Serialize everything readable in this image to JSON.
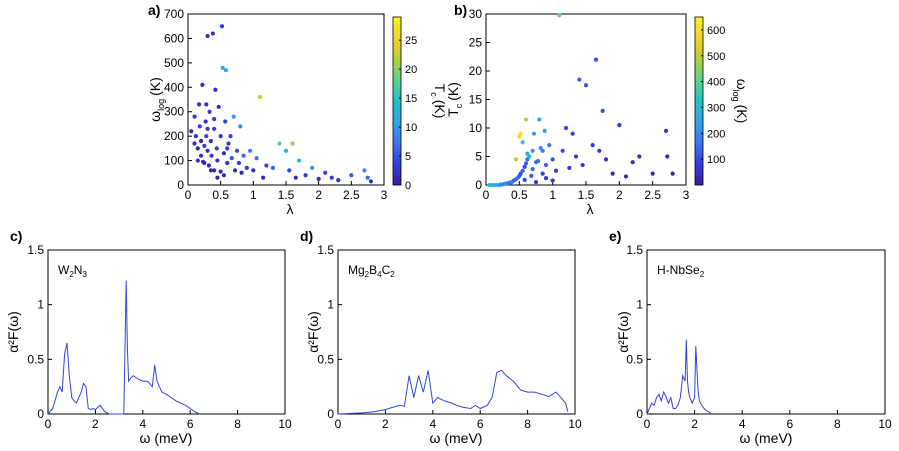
{
  "colormap": [
    "#3b1ba0",
    "#2f3fe0",
    "#3f74f2",
    "#2ea5e6",
    "#1ec4c4",
    "#5cd28a",
    "#b6cf3a",
    "#f2d22a",
    "#fbf514"
  ],
  "line_color": "#3346d6",
  "chart_data": [
    {
      "id": "a",
      "type": "scatter",
      "panel_label": "a)",
      "xlabel": "λ",
      "ylabel_main": "ω",
      "ylabel_sub": "log",
      "ylabel_unit": "(K)",
      "xlim": [
        0,
        3
      ],
      "ylim": [
        0,
        700
      ],
      "xticks": [
        "0",
        "0.5",
        "1",
        "1.5",
        "2",
        "2.5",
        "3"
      ],
      "yticks": [
        "0",
        "100",
        "200",
        "300",
        "400",
        "500",
        "600",
        "700"
      ],
      "colorbar": {
        "label": "T",
        "label_sub": "c",
        "label_unit": "(K)",
        "range": [
          0,
          29
        ],
        "ticks": [
          "0",
          "5",
          "10",
          "15",
          "20",
          "25"
        ]
      },
      "points": [
        [
          0.05,
          220,
          2
        ],
        [
          0.1,
          280,
          3
        ],
        [
          0.12,
          200,
          2
        ],
        [
          0.15,
          150,
          1
        ],
        [
          0.17,
          330,
          2
        ],
        [
          0.18,
          240,
          3
        ],
        [
          0.2,
          180,
          1
        ],
        [
          0.2,
          120,
          2
        ],
        [
          0.22,
          410,
          2
        ],
        [
          0.23,
          95,
          1
        ],
        [
          0.25,
          160,
          3
        ],
        [
          0.27,
          260,
          2
        ],
        [
          0.28,
          200,
          4
        ],
        [
          0.3,
          610,
          2
        ],
        [
          0.3,
          140,
          2
        ],
        [
          0.32,
          80,
          1
        ],
        [
          0.33,
          300,
          3
        ],
        [
          0.35,
          180,
          2
        ],
        [
          0.36,
          120,
          3
        ],
        [
          0.38,
          620,
          2
        ],
        [
          0.4,
          230,
          3
        ],
        [
          0.4,
          60,
          1
        ],
        [
          0.42,
          390,
          2
        ],
        [
          0.44,
          150,
          3
        ],
        [
          0.45,
          100,
          2
        ],
        [
          0.47,
          320,
          2
        ],
        [
          0.5,
          200,
          3
        ],
        [
          0.5,
          55,
          1
        ],
        [
          0.52,
          650,
          3
        ],
        [
          0.53,
          480,
          12
        ],
        [
          0.55,
          130,
          2
        ],
        [
          0.57,
          260,
          4
        ],
        [
          0.58,
          470,
          11
        ],
        [
          0.6,
          90,
          2
        ],
        [
          0.62,
          170,
          3
        ],
        [
          0.65,
          200,
          4
        ],
        [
          0.67,
          110,
          5
        ],
        [
          0.7,
          280,
          10
        ],
        [
          0.72,
          60,
          2
        ],
        [
          0.75,
          140,
          4
        ],
        [
          0.78,
          90,
          3
        ],
        [
          0.8,
          240,
          9
        ],
        [
          0.82,
          50,
          1
        ],
        [
          0.85,
          120,
          6
        ],
        [
          0.9,
          70,
          3
        ],
        [
          0.95,
          140,
          8
        ],
        [
          1.0,
          60,
          2
        ],
        [
          1.05,
          110,
          7
        ],
        [
          1.1,
          360,
          22
        ],
        [
          1.15,
          30,
          1
        ],
        [
          1.2,
          80,
          4
        ],
        [
          1.3,
          70,
          6
        ],
        [
          1.4,
          170,
          18
        ],
        [
          1.5,
          140,
          12
        ],
        [
          1.55,
          60,
          4
        ],
        [
          1.6,
          170,
          20
        ],
        [
          1.65,
          30,
          2
        ],
        [
          1.7,
          100,
          14
        ],
        [
          1.8,
          40,
          3
        ],
        [
          1.9,
          70,
          10
        ],
        [
          2.0,
          25,
          2
        ],
        [
          2.1,
          50,
          4
        ],
        [
          2.2,
          30,
          3
        ],
        [
          2.3,
          20,
          2
        ],
        [
          2.5,
          40,
          5
        ],
        [
          2.7,
          60,
          9
        ],
        [
          2.75,
          30,
          6
        ],
        [
          2.8,
          15,
          2
        ],
        [
          0.25,
          90,
          1
        ],
        [
          0.35,
          60,
          1
        ],
        [
          0.45,
          30,
          1
        ],
        [
          0.55,
          40,
          2
        ],
        [
          0.6,
          150,
          3
        ],
        [
          0.15,
          100,
          2
        ],
        [
          0.28,
          330,
          2
        ],
        [
          0.4,
          270,
          3
        ],
        [
          0.1,
          170,
          2
        ],
        [
          0.3,
          230,
          2
        ]
      ]
    },
    {
      "id": "b",
      "type": "scatter",
      "panel_label": "b)",
      "xlabel": "λ",
      "ylabel_main": "T",
      "ylabel_sub": "c",
      "ylabel_unit": "(K)",
      "xlim": [
        0,
        3
      ],
      "ylim": [
        0,
        30
      ],
      "xticks": [
        "0",
        "0.5",
        "1",
        "1.5",
        "2",
        "2.5",
        "3"
      ],
      "yticks": [
        "0",
        "5",
        "10",
        "15",
        "20",
        "25",
        "30"
      ],
      "colorbar": {
        "label": "ω",
        "label_sub": "log",
        "label_unit": "(K)",
        "range": [
          0,
          650
        ],
        "ticks": [
          "100",
          "200",
          "300",
          "400",
          "500",
          "600"
        ]
      },
      "points": [
        [
          0.05,
          0,
          300
        ],
        [
          0.1,
          0,
          280
        ],
        [
          0.15,
          0,
          250
        ],
        [
          0.2,
          0,
          220
        ],
        [
          0.22,
          0.1,
          200
        ],
        [
          0.25,
          0.1,
          190
        ],
        [
          0.28,
          0.2,
          180
        ],
        [
          0.3,
          0.2,
          260
        ],
        [
          0.32,
          0.3,
          170
        ],
        [
          0.35,
          0.4,
          160
        ],
        [
          0.38,
          0.5,
          150
        ],
        [
          0.4,
          0.6,
          200
        ],
        [
          0.42,
          0.8,
          140
        ],
        [
          0.45,
          1.0,
          130
        ],
        [
          0.48,
          1.3,
          160
        ],
        [
          0.5,
          1.6,
          120
        ],
        [
          0.52,
          2.0,
          110
        ],
        [
          0.55,
          2.5,
          130
        ],
        [
          0.58,
          3.2,
          100
        ],
        [
          0.6,
          3.8,
          120
        ],
        [
          0.62,
          4.5,
          150
        ],
        [
          0.45,
          4.5,
          500
        ],
        [
          0.5,
          8.5,
          560
        ],
        [
          0.52,
          9.0,
          600
        ],
        [
          0.55,
          7.5,
          350
        ],
        [
          0.6,
          11.5,
          480
        ],
        [
          0.62,
          5.5,
          260
        ],
        [
          0.65,
          5.0,
          300
        ],
        [
          0.7,
          6.0,
          200
        ],
        [
          0.72,
          9.0,
          250
        ],
        [
          0.75,
          4.0,
          180
        ],
        [
          0.8,
          11.5,
          260
        ],
        [
          0.82,
          6.5,
          200
        ],
        [
          0.85,
          2.0,
          90
        ],
        [
          0.88,
          9.5,
          220
        ],
        [
          0.9,
          3.5,
          120
        ],
        [
          0.95,
          7.0,
          160
        ],
        [
          1.0,
          4.5,
          110
        ],
        [
          1.05,
          2.5,
          80
        ],
        [
          1.1,
          29.8,
          420
        ],
        [
          1.15,
          6.0,
          90
        ],
        [
          1.2,
          10.0,
          90
        ],
        [
          1.25,
          3.0,
          70
        ],
        [
          1.3,
          9.0,
          80
        ],
        [
          1.35,
          5.0,
          70
        ],
        [
          1.4,
          18.5,
          120
        ],
        [
          1.45,
          3.5,
          60
        ],
        [
          1.5,
          17.5,
          120
        ],
        [
          1.6,
          7.0,
          70
        ],
        [
          1.65,
          22.0,
          110
        ],
        [
          1.7,
          6.0,
          60
        ],
        [
          1.75,
          13.0,
          100
        ],
        [
          1.8,
          4.5,
          50
        ],
        [
          1.9,
          2.0,
          40
        ],
        [
          2.0,
          10.5,
          70
        ],
        [
          2.1,
          1.5,
          30
        ],
        [
          2.2,
          4.0,
          40
        ],
        [
          2.3,
          5.0,
          45
        ],
        [
          2.5,
          2.0,
          30
        ],
        [
          2.7,
          9.5,
          60
        ],
        [
          2.72,
          5.0,
          40
        ],
        [
          2.8,
          2.0,
          20
        ],
        [
          0.7,
          2.8,
          150
        ],
        [
          0.78,
          4.2,
          140
        ],
        [
          0.85,
          6.0,
          180
        ],
        [
          0.9,
          1.2,
          80
        ],
        [
          1.0,
          0.8,
          60
        ],
        [
          0.58,
          0.9,
          90
        ],
        [
          0.68,
          1.6,
          120
        ],
        [
          0.75,
          0.5,
          70
        ]
      ]
    },
    {
      "id": "c",
      "type": "line",
      "panel_label": "c)",
      "inset_label": "W",
      "inset_parts": [
        {
          "t": "W",
          "sub": false
        },
        {
          "t": "2",
          "sub": true
        },
        {
          "t": "N",
          "sub": false
        },
        {
          "t": "3",
          "sub": true
        }
      ],
      "xlabel": "ω (meV)",
      "ylabel": "α²F(ω)",
      "xlim": [
        0,
        10
      ],
      "ylim": [
        0,
        1.5
      ],
      "xticks": [
        "0",
        "2",
        "4",
        "6",
        "8",
        "10"
      ],
      "yticks": [
        "0",
        "0.5",
        "1",
        "1.5"
      ],
      "x": [
        0,
        0.2,
        0.4,
        0.5,
        0.6,
        0.7,
        0.8,
        0.9,
        1.0,
        1.1,
        1.2,
        1.3,
        1.4,
        1.5,
        1.6,
        1.7,
        1.8,
        1.9,
        2.0,
        2.2,
        2.4,
        2.6,
        2.8,
        3.0,
        3.1,
        3.2,
        3.25,
        3.3,
        3.35,
        3.4,
        3.5,
        3.6,
        3.8,
        4.0,
        4.2,
        4.4,
        4.5,
        4.6,
        4.7,
        4.8,
        5.0,
        5.2,
        5.4,
        5.6,
        5.8,
        6.0,
        6.2,
        6.4
      ],
      "y": [
        0,
        0.05,
        0.2,
        0.25,
        0.2,
        0.55,
        0.65,
        0.35,
        0.15,
        0.12,
        0.1,
        0.15,
        0.2,
        0.28,
        0.25,
        0.05,
        0.04,
        0.05,
        0.04,
        0.08,
        0.02,
        0,
        0,
        0,
        0,
        0,
        0.6,
        1.22,
        0.6,
        0.3,
        0.33,
        0.35,
        0.32,
        0.3,
        0.3,
        0.25,
        0.45,
        0.3,
        0.25,
        0.2,
        0.18,
        0.15,
        0.12,
        0.1,
        0.08,
        0.05,
        0.02,
        0
      ]
    },
    {
      "id": "d",
      "type": "line",
      "panel_label": "d)",
      "inset_label": "Mg",
      "inset_parts": [
        {
          "t": "Mg",
          "sub": false
        },
        {
          "t": "2",
          "sub": true
        },
        {
          "t": "B",
          "sub": false
        },
        {
          "t": "4",
          "sub": true
        },
        {
          "t": "C",
          "sub": false
        },
        {
          "t": "2",
          "sub": true
        }
      ],
      "xlabel": "ω (meV)",
      "ylabel": "α²F(ω)",
      "xlim": [
        0,
        10
      ],
      "ylim": [
        0,
        1.5
      ],
      "xticks": [
        "0",
        "2",
        "4",
        "6",
        "8",
        "10"
      ],
      "yticks": [
        "0",
        "0.5",
        "1",
        "1.5"
      ],
      "x": [
        0,
        1.0,
        1.5,
        2.0,
        2.3,
        2.6,
        2.8,
        3.0,
        3.2,
        3.4,
        3.6,
        3.8,
        4.0,
        4.2,
        4.5,
        4.8,
        5.0,
        5.3,
        5.6,
        5.8,
        6.0,
        6.3,
        6.5,
        6.7,
        6.9,
        7.1,
        7.4,
        7.7,
        8.0,
        8.3,
        8.6,
        8.9,
        9.2,
        9.4,
        9.6,
        9.7
      ],
      "y": [
        0,
        0.01,
        0.02,
        0.04,
        0.06,
        0.08,
        0.07,
        0.35,
        0.15,
        0.35,
        0.2,
        0.4,
        0.1,
        0.15,
        0.12,
        0.1,
        0.08,
        0.06,
        0.05,
        0.08,
        0.05,
        0.08,
        0.15,
        0.38,
        0.4,
        0.35,
        0.3,
        0.22,
        0.2,
        0.2,
        0.18,
        0.16,
        0.2,
        0.15,
        0.1,
        0.02
      ]
    },
    {
      "id": "e",
      "type": "line",
      "panel_label": "e)",
      "inset_label": "H-NbSe",
      "inset_parts": [
        {
          "t": "H-NbSe",
          "sub": false
        },
        {
          "t": "2",
          "sub": true
        }
      ],
      "xlabel": "ω (meV)",
      "ylabel": "α²F(ω)",
      "xlim": [
        0,
        10
      ],
      "ylim": [
        0,
        1.5
      ],
      "xticks": [
        "0",
        "2",
        "4",
        "6",
        "8",
        "10"
      ],
      "yticks": [
        "0",
        "0.5",
        "1",
        "1.5"
      ],
      "x": [
        0,
        0.1,
        0.2,
        0.3,
        0.4,
        0.5,
        0.6,
        0.7,
        0.8,
        0.9,
        1.0,
        1.1,
        1.2,
        1.3,
        1.4,
        1.5,
        1.6,
        1.65,
        1.7,
        1.75,
        1.8,
        1.9,
        2.0,
        2.05,
        2.1,
        2.15,
        2.2,
        2.3,
        2.4,
        2.5,
        2.6,
        2.7
      ],
      "y": [
        0,
        0.05,
        0.1,
        0.08,
        0.15,
        0.18,
        0.12,
        0.2,
        0.16,
        0.1,
        0.15,
        0.05,
        0.05,
        0.08,
        0.15,
        0.35,
        0.3,
        0.68,
        0.3,
        0.2,
        0.15,
        0.1,
        0.15,
        0.62,
        0.4,
        0.2,
        0.12,
        0.08,
        0.05,
        0.03,
        0.02,
        0
      ]
    }
  ]
}
